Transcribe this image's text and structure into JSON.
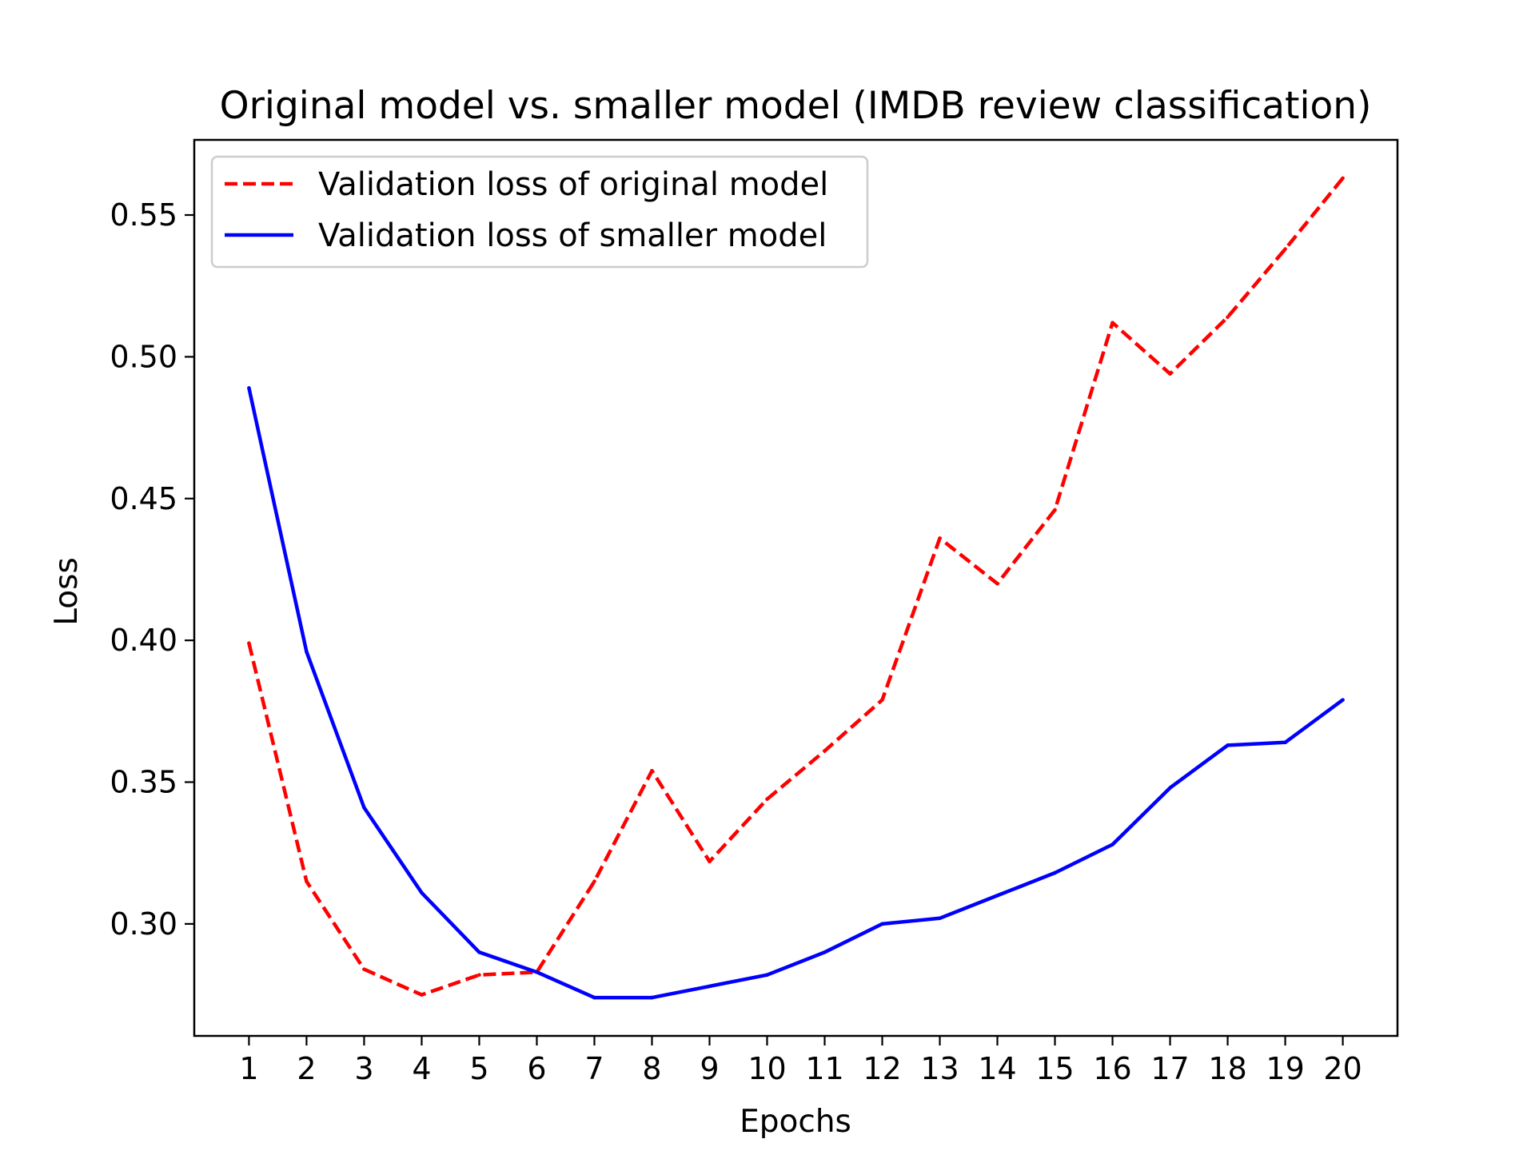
{
  "chart_data": {
    "type": "line",
    "title": "Original model vs. smaller model (IMDB review classification)",
    "xlabel": "Epochs",
    "ylabel": "Loss",
    "x": [
      1,
      2,
      3,
      4,
      5,
      6,
      7,
      8,
      9,
      10,
      11,
      12,
      13,
      14,
      15,
      16,
      17,
      18,
      19,
      20
    ],
    "xlim": [
      0.05,
      20.95
    ],
    "ylim": [
      0.2605,
      0.5765
    ],
    "yticks": [
      0.3,
      0.35,
      0.4,
      0.45,
      0.5,
      0.55
    ],
    "ytick_labels": [
      "0.30",
      "0.35",
      "0.40",
      "0.45",
      "0.50",
      "0.55"
    ],
    "xtick_labels": [
      "1",
      "2",
      "3",
      "4",
      "5",
      "6",
      "7",
      "8",
      "9",
      "10",
      "11",
      "12",
      "13",
      "14",
      "15",
      "16",
      "17",
      "18",
      "19",
      "20"
    ],
    "grid": false,
    "legend_position": "top-left",
    "series": [
      {
        "name": "Validation loss of original model",
        "color": "#ff0000",
        "style": "dashed",
        "values": [
          0.399,
          0.315,
          0.284,
          0.275,
          0.282,
          0.283,
          0.315,
          0.354,
          0.322,
          0.344,
          0.361,
          0.379,
          0.436,
          0.42,
          0.446,
          0.512,
          0.494,
          0.514,
          0.538,
          0.563
        ]
      },
      {
        "name": "Validation loss of smaller model",
        "color": "#0000ff",
        "style": "solid",
        "values": [
          0.489,
          0.396,
          0.341,
          0.311,
          0.29,
          0.283,
          0.274,
          0.274,
          0.278,
          0.282,
          0.29,
          0.3,
          0.302,
          0.31,
          0.318,
          0.328,
          0.348,
          0.363,
          0.364,
          0.379
        ]
      }
    ]
  }
}
